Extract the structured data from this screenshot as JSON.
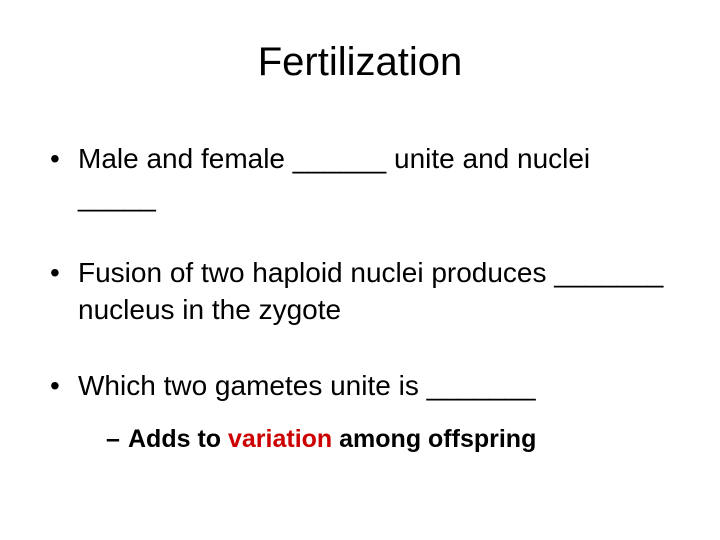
{
  "title": "Fertilization",
  "bullets": {
    "b1": "Male and female ______ unite and nuclei _____",
    "b2": "Fusion of two haploid nuclei produces _______ nucleus in the zygote",
    "b3": "Which two gametes unite is _______",
    "sub_prefix": "Adds to ",
    "sub_highlight": "variation",
    "sub_suffix": " among offspring"
  },
  "style": {
    "title_fontsize": 40,
    "body_fontsize": 28,
    "sub_fontsize": 25,
    "text_color": "#000000",
    "highlight_color": "#cc0000",
    "background_color": "#ffffff",
    "font_family": "Arial"
  }
}
